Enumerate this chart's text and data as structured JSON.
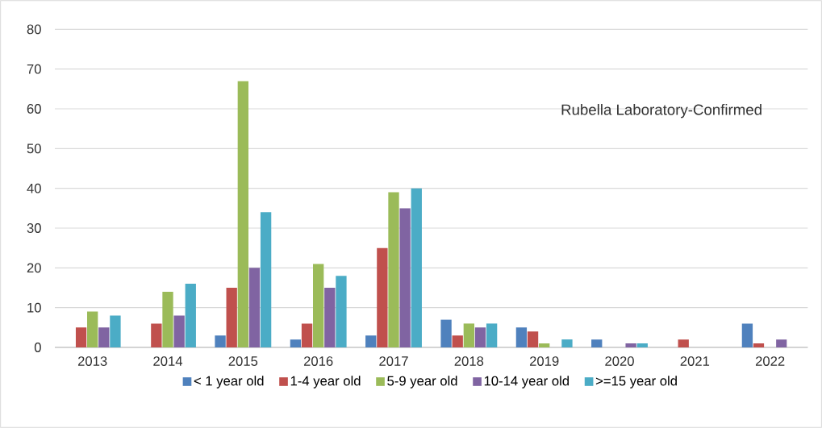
{
  "chart_data": {
    "type": "bar",
    "categories": [
      "2013",
      "2014",
      "2015",
      "2016",
      "2017",
      "2018",
      "2019",
      "2020",
      "2021",
      "2022"
    ],
    "series": [
      {
        "name": "< 1 year old",
        "color": "#4f81bd",
        "values": [
          0,
          0,
          3,
          2,
          3,
          7,
          5,
          2,
          0,
          6
        ]
      },
      {
        "name": "1-4 year old",
        "color": "#c0504d",
        "values": [
          5,
          6,
          15,
          6,
          25,
          3,
          4,
          0,
          2,
          1
        ]
      },
      {
        "name": "5-9 year old",
        "color": "#9bbb59",
        "values": [
          9,
          14,
          67,
          21,
          39,
          6,
          1,
          0,
          0,
          0
        ]
      },
      {
        "name": "10-14 year old",
        "color": "#8064a2",
        "values": [
          5,
          8,
          20,
          15,
          35,
          5,
          0,
          1,
          0,
          2
        ]
      },
      {
        "name": ">=15 year old",
        "color": "#4bacc6",
        "values": [
          8,
          16,
          34,
          18,
          40,
          6,
          2,
          1,
          0,
          0
        ]
      }
    ],
    "annotations": [
      "Rubella Laboratory-Confirmed"
    ],
    "ylim": [
      0,
      80
    ],
    "yticks": [
      0,
      10,
      20,
      30,
      40,
      50,
      60,
      70,
      80
    ],
    "grid": "y",
    "legend": "bottom"
  }
}
